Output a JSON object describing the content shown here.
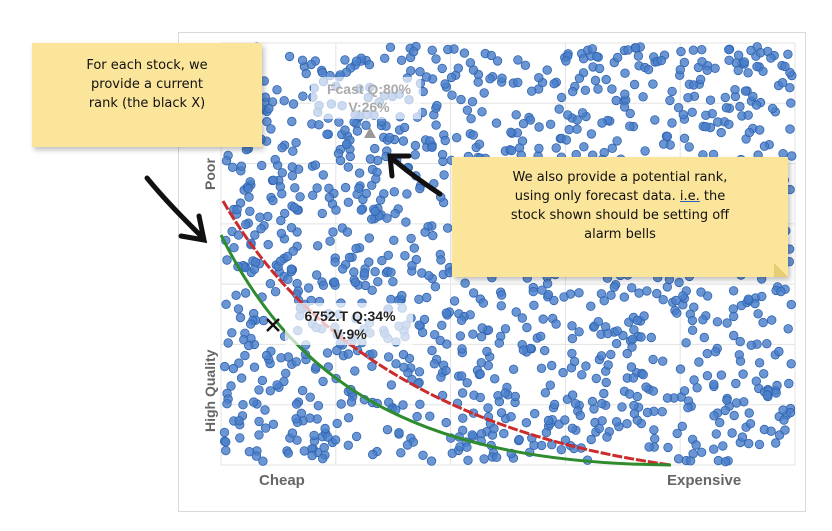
{
  "chart_data": {
    "type": "scatter",
    "title": "",
    "x_axis": {
      "start_label": "Cheap",
      "end_label": "Expensive"
    },
    "y_axis": {
      "start_label": "Poor",
      "end_label": "High Quality"
    },
    "grid": true,
    "point_color": "#4a7fc9",
    "points": {
      "approx_count": 1400,
      "distribution": "uniform random across the whole plot"
    },
    "curves": [
      {
        "color": "#cc2b2b",
        "style": "solid red line ending at Expensive"
      },
      {
        "color": "#2e8b2e",
        "style": "solid green line ending at Expensive"
      }
    ],
    "highlights": [
      {
        "marker": "x",
        "color": "#111111",
        "label_line1": "6752.T Q:34%",
        "label_line2": "V:9%"
      },
      {
        "marker": "triangle",
        "color": "#999999",
        "label_line1": "Fcast Q:80%",
        "label_line2": "V:26%"
      }
    ]
  },
  "notes": {
    "left": [
      "For each stock, we",
      "provide a current",
      "rank (the black X)"
    ],
    "right": {
      "line1": "We also provide a potential rank,",
      "line2_prefix": "using only forecast data. ",
      "line2_underlined": "i.e.",
      "line2_suffix": " the",
      "line3": "stock shown should be setting off",
      "line4": "alarm bells"
    }
  },
  "colors": {
    "note_background": "#fbe59a",
    "arrow": "#111111",
    "grid": "#e3e3e3"
  }
}
